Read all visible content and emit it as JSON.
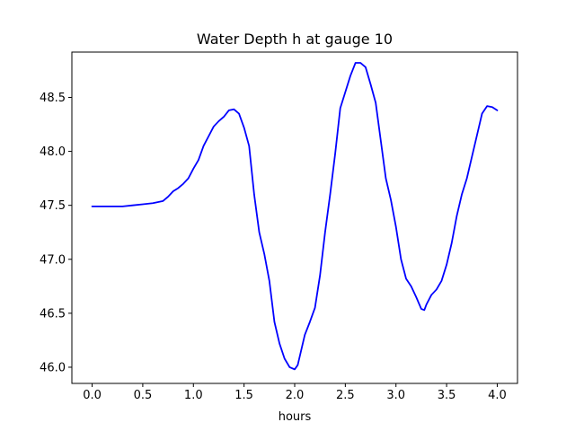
{
  "chart_data": {
    "type": "line",
    "title": "Water Depth h at gauge 10",
    "xlabel": "hours",
    "ylabel": "",
    "xlim": [
      -0.2,
      4.2
    ],
    "ylim": [
      45.85,
      48.92
    ],
    "x_ticks": [
      0.0,
      0.5,
      1.0,
      1.5,
      2.0,
      2.5,
      3.0,
      3.5,
      4.0
    ],
    "x_tick_labels": [
      "0.0",
      "0.5",
      "1.0",
      "1.5",
      "2.0",
      "2.5",
      "3.0",
      "3.5",
      "4.0"
    ],
    "y_ticks": [
      46.0,
      46.5,
      47.0,
      47.5,
      48.0,
      48.5
    ],
    "y_tick_labels": [
      "46.0",
      "46.5",
      "47.0",
      "47.5",
      "48.0",
      "48.5"
    ],
    "grid": false,
    "legend": "none",
    "series": [
      {
        "color": "#0000ff",
        "x": [
          0.0,
          0.1,
          0.2,
          0.3,
          0.4,
          0.5,
          0.6,
          0.7,
          0.75,
          0.8,
          0.85,
          0.9,
          0.95,
          1.0,
          1.05,
          1.1,
          1.15,
          1.2,
          1.25,
          1.3,
          1.35,
          1.4,
          1.45,
          1.5,
          1.55,
          1.6,
          1.65,
          1.7,
          1.75,
          1.8,
          1.85,
          1.9,
          1.95,
          2.0,
          2.03,
          2.05,
          2.1,
          2.15,
          2.2,
          2.25,
          2.3,
          2.35,
          2.4,
          2.45,
          2.5,
          2.55,
          2.6,
          2.65,
          2.7,
          2.75,
          2.8,
          2.85,
          2.9,
          2.95,
          3.0,
          3.05,
          3.1,
          3.15,
          3.2,
          3.25,
          3.28,
          3.3,
          3.35,
          3.4,
          3.45,
          3.5,
          3.55,
          3.6,
          3.65,
          3.7,
          3.75,
          3.8,
          3.85,
          3.9,
          3.95,
          4.0
        ],
        "values": [
          47.49,
          47.49,
          47.49,
          47.49,
          47.5,
          47.51,
          47.52,
          47.54,
          47.58,
          47.63,
          47.66,
          47.7,
          47.75,
          47.84,
          47.92,
          48.05,
          48.14,
          48.23,
          48.28,
          48.32,
          48.38,
          48.39,
          48.35,
          48.22,
          48.05,
          47.6,
          47.25,
          47.05,
          46.8,
          46.42,
          46.22,
          46.08,
          46.0,
          45.98,
          46.02,
          46.1,
          46.3,
          46.42,
          46.55,
          46.85,
          47.25,
          47.6,
          47.98,
          48.4,
          48.55,
          48.7,
          48.82,
          48.82,
          48.78,
          48.62,
          48.45,
          48.1,
          47.75,
          47.55,
          47.3,
          47.0,
          46.82,
          46.75,
          46.65,
          46.54,
          46.53,
          46.58,
          46.67,
          46.72,
          46.8,
          46.95,
          47.15,
          47.4,
          47.6,
          47.75,
          47.95,
          48.15,
          48.35,
          48.42,
          48.41,
          48.38
        ]
      }
    ]
  }
}
